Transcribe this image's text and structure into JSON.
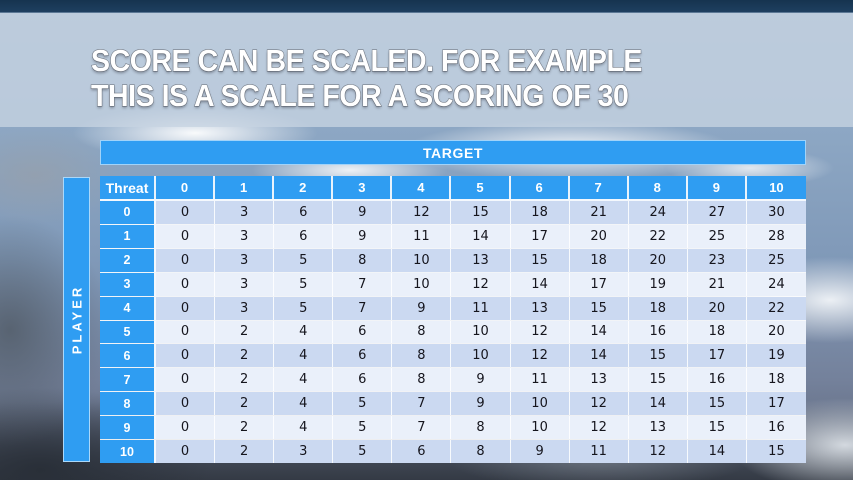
{
  "slide": {
    "title_line1": "SCORE CAN BE SCALED. FOR EXAMPLE",
    "title_line2": "THIS IS A SCALE FOR A SCORING OF 30"
  },
  "chart_data": {
    "type": "table",
    "title": "SCORE CAN BE SCALED. FOR EXAMPLE THIS IS A SCALE FOR A SCORING OF 30",
    "x_axis_label": "TARGET",
    "y_axis_label": "PLAYER",
    "corner_label": "Threat",
    "columns": [
      "0",
      "1",
      "2",
      "3",
      "4",
      "5",
      "6",
      "7",
      "8",
      "9",
      "10"
    ],
    "rows": [
      {
        "label": "0",
        "values": [
          0,
          3,
          6,
          9,
          12,
          15,
          18,
          21,
          24,
          27,
          30
        ]
      },
      {
        "label": "1",
        "values": [
          0,
          3,
          6,
          9,
          11,
          14,
          17,
          20,
          22,
          25,
          28
        ]
      },
      {
        "label": "2",
        "values": [
          0,
          3,
          5,
          8,
          10,
          13,
          15,
          18,
          20,
          23,
          25
        ]
      },
      {
        "label": "3",
        "values": [
          0,
          3,
          5,
          7,
          10,
          12,
          14,
          17,
          19,
          21,
          24
        ]
      },
      {
        "label": "4",
        "values": [
          0,
          3,
          5,
          7,
          9,
          11,
          13,
          15,
          18,
          20,
          22
        ]
      },
      {
        "label": "5",
        "values": [
          0,
          2,
          4,
          6,
          8,
          10,
          12,
          14,
          16,
          18,
          20
        ]
      },
      {
        "label": "6",
        "values": [
          0,
          2,
          4,
          6,
          8,
          10,
          12,
          14,
          15,
          17,
          19
        ]
      },
      {
        "label": "7",
        "values": [
          0,
          2,
          4,
          6,
          8,
          9,
          11,
          13,
          15,
          16,
          18
        ]
      },
      {
        "label": "8",
        "values": [
          0,
          2,
          4,
          5,
          7,
          9,
          10,
          12,
          14,
          15,
          17
        ]
      },
      {
        "label": "9",
        "values": [
          0,
          2,
          4,
          5,
          7,
          8,
          10,
          12,
          13,
          15,
          16
        ]
      },
      {
        "label": "10",
        "values": [
          0,
          2,
          3,
          5,
          6,
          8,
          9,
          11,
          12,
          14,
          15
        ]
      }
    ]
  },
  "colors": {
    "header_blue": "#2f9df2",
    "row_even": "#cbd9f1",
    "row_odd": "#eaf0fa",
    "title_band": "#c6d3e1",
    "body_text": "#15151d"
  }
}
